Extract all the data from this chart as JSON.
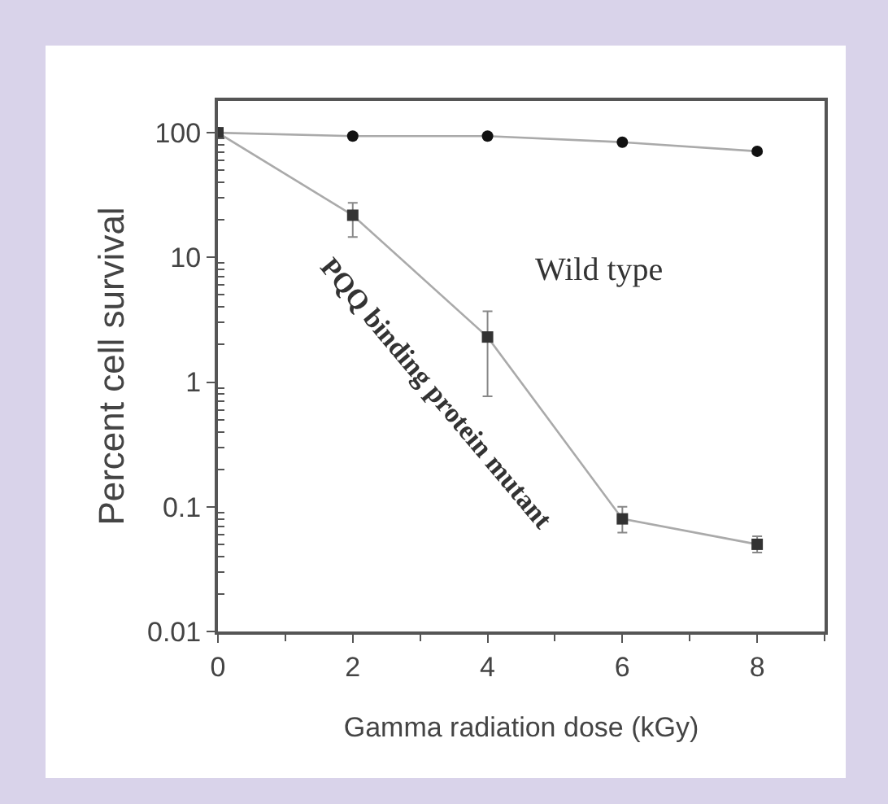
{
  "chart_data": {
    "type": "line",
    "xlabel": "Gamma radiation dose (kGy)",
    "ylabel": "Percent cell survival",
    "x": [
      0,
      2,
      4,
      6,
      8
    ],
    "series": [
      {
        "color": "#111111",
        "marker": "circle",
        "values": [
          100,
          94,
          94,
          84,
          71
        ]
      },
      {
        "color": "#333333",
        "marker": "square",
        "values": [
          100,
          21.8,
          2.3,
          0.08,
          0.05
        ],
        "errors": [
          null,
          [
            14.6,
            27.4
          ],
          [
            0.77,
            3.7
          ],
          [
            0.062,
            0.1
          ],
          [
            0.043,
            0.058
          ]
        ]
      }
    ],
    "annotations": [
      "Wild type",
      "PQQ binding protein mutant"
    ],
    "log": "y",
    "xlim": [
      0,
      9
    ],
    "xticks": [
      0,
      2,
      4,
      6,
      8
    ],
    "ylim": [
      0.01,
      180
    ],
    "yticks": [
      0.01,
      0.1,
      1,
      10,
      100
    ],
    "legend": false,
    "line_style": "solid"
  }
}
